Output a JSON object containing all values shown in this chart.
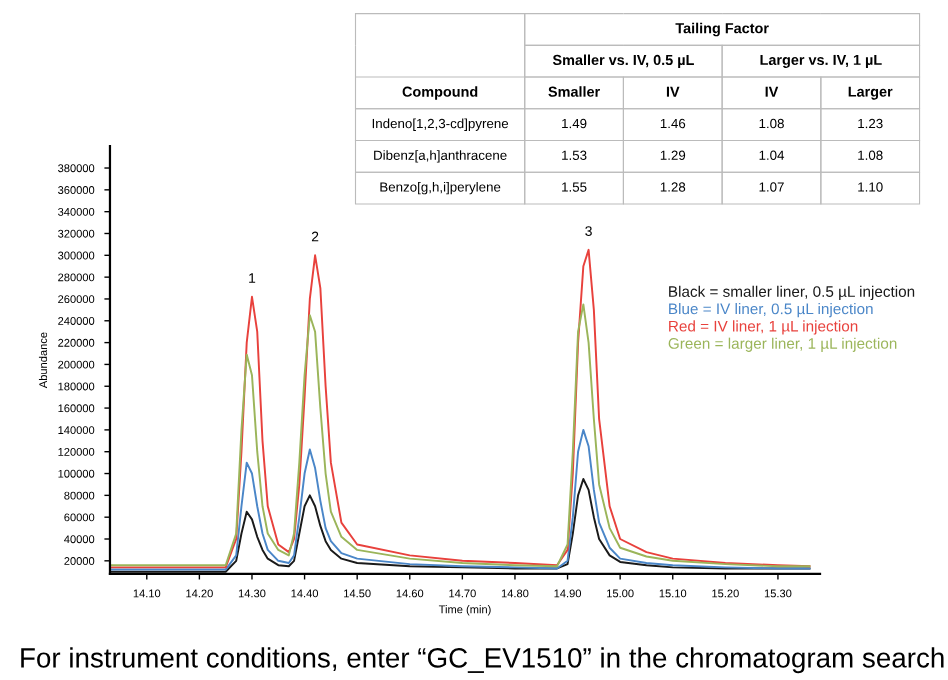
{
  "chart_data": [
    {
      "type": "line",
      "xlabel": "Time (min)",
      "ylabel": "Abundance",
      "x": [
        14.03,
        14.1,
        14.2,
        14.25,
        14.27,
        14.28,
        14.29,
        14.3,
        14.31,
        14.32,
        14.33,
        14.35,
        14.37,
        14.38,
        14.39,
        14.4,
        14.41,
        14.42,
        14.43,
        14.44,
        14.45,
        14.47,
        14.5,
        14.6,
        14.7,
        14.8,
        14.88,
        14.9,
        14.91,
        14.92,
        14.93,
        14.94,
        14.95,
        14.96,
        14.98,
        15.0,
        15.05,
        15.1,
        15.2,
        15.3,
        15.36
      ],
      "series": [
        {
          "name": "Black = smaller liner, 0.5 µL injection",
          "color": "#1a1a1a",
          "values": [
            10000,
            10000,
            10000,
            10000,
            20000,
            45000,
            65000,
            58000,
            42000,
            30000,
            22000,
            16000,
            15000,
            20000,
            45000,
            70000,
            80000,
            70000,
            52000,
            38000,
            30000,
            22000,
            18000,
            15000,
            14000,
            13000,
            13000,
            17000,
            45000,
            80000,
            95000,
            85000,
            60000,
            40000,
            25000,
            19000,
            16000,
            14000,
            13000,
            13000,
            13000
          ]
        },
        {
          "name": "Blue = IV liner, 0.5 µL injection",
          "color": "#4a86c8",
          "values": [
            12000,
            12000,
            12000,
            12000,
            25000,
            70000,
            110000,
            100000,
            70000,
            45000,
            30000,
            20000,
            18000,
            25000,
            60000,
            100000,
            122000,
            105000,
            75000,
            50000,
            38000,
            27000,
            22000,
            17000,
            15000,
            14000,
            13000,
            20000,
            60000,
            120000,
            140000,
            125000,
            85000,
            55000,
            32000,
            22000,
            18000,
            16000,
            14000,
            13000,
            13000
          ]
        },
        {
          "name": "Red = IV liner, 1 µL injection",
          "color": "#e8413c",
          "values": [
            14000,
            14000,
            14000,
            14000,
            40000,
            120000,
            220000,
            262000,
            230000,
            130000,
            70000,
            35000,
            28000,
            40000,
            90000,
            170000,
            260000,
            300000,
            270000,
            180000,
            110000,
            55000,
            35000,
            25000,
            20000,
            18000,
            16000,
            30000,
            100000,
            220000,
            290000,
            305000,
            250000,
            150000,
            70000,
            40000,
            28000,
            22000,
            18000,
            16000,
            15000
          ]
        },
        {
          "name": "Green = larger liner, 1 µL injection",
          "color": "#9bb55a",
          "values": [
            16000,
            16000,
            16000,
            16000,
            45000,
            140000,
            209000,
            190000,
            120000,
            70000,
            45000,
            30000,
            25000,
            45000,
            110000,
            190000,
            245000,
            230000,
            160000,
            100000,
            65000,
            42000,
            30000,
            22000,
            18000,
            16000,
            15000,
            35000,
            120000,
            230000,
            255000,
            220000,
            150000,
            90000,
            50000,
            32000,
            24000,
            20000,
            17000,
            15000,
            15000
          ]
        }
      ],
      "xlim": [
        14.03,
        15.38
      ],
      "xticks": [
        {
          "value": 14.1,
          "label": "14.10"
        },
        {
          "value": 14.2,
          "label": "14.20"
        },
        {
          "value": 14.3,
          "label": "14.30"
        },
        {
          "value": 14.4,
          "label": "14.40"
        },
        {
          "value": 14.5,
          "label": "14.50"
        },
        {
          "value": 14.6,
          "label": "14.60"
        },
        {
          "value": 14.7,
          "label": "14.70"
        },
        {
          "value": 14.8,
          "label": "14.80"
        },
        {
          "value": 14.9,
          "label": "14.90"
        },
        {
          "value": 15.0,
          "label": "15.00"
        },
        {
          "value": 15.1,
          "label": "15.10"
        },
        {
          "value": 15.2,
          "label": "15.20"
        },
        {
          "value": 15.3,
          "label": "15.30"
        }
      ],
      "ylim": [
        8000,
        400000
      ],
      "yticks": [
        20000,
        40000,
        60000,
        80000,
        100000,
        120000,
        140000,
        160000,
        180000,
        200000,
        220000,
        240000,
        260000,
        280000,
        300000,
        320000,
        340000,
        360000,
        380000
      ],
      "legend": "right",
      "grid": false,
      "marker": "none",
      "line_style": "solid",
      "annotations": [
        {
          "text": "1",
          "x": 14.3,
          "y": 262000
        },
        {
          "text": "2",
          "x": 14.42,
          "y": 300000
        },
        {
          "text": "3",
          "x": 14.94,
          "y": 305000
        },
        "For instrument conditions, enter “GC_EV1510” in the chromatogram search"
      ]
    },
    {
      "type": "other",
      "title": "Tailing Factor",
      "ylabel": "Compound",
      "annotations": [
        "Smaller vs. IV, 0.5 µL",
        "Larger vs. IV, 1 µL"
      ],
      "categories": [
        "Smaller",
        "IV",
        "IV",
        "Larger"
      ],
      "y_categories": [
        "Indeno[1,2,3-cd]pyrene",
        "Dibenz[a,h]anthracene",
        "Benzo[g,h,i]perylene"
      ],
      "cell_labels": [
        [
          "1.49",
          "1.46",
          "1.08",
          "1.23"
        ],
        [
          "1.53",
          "1.29",
          "1.04",
          "1.08"
        ],
        [
          "1.55",
          "1.28",
          "1.07",
          "1.10"
        ]
      ]
    }
  ]
}
